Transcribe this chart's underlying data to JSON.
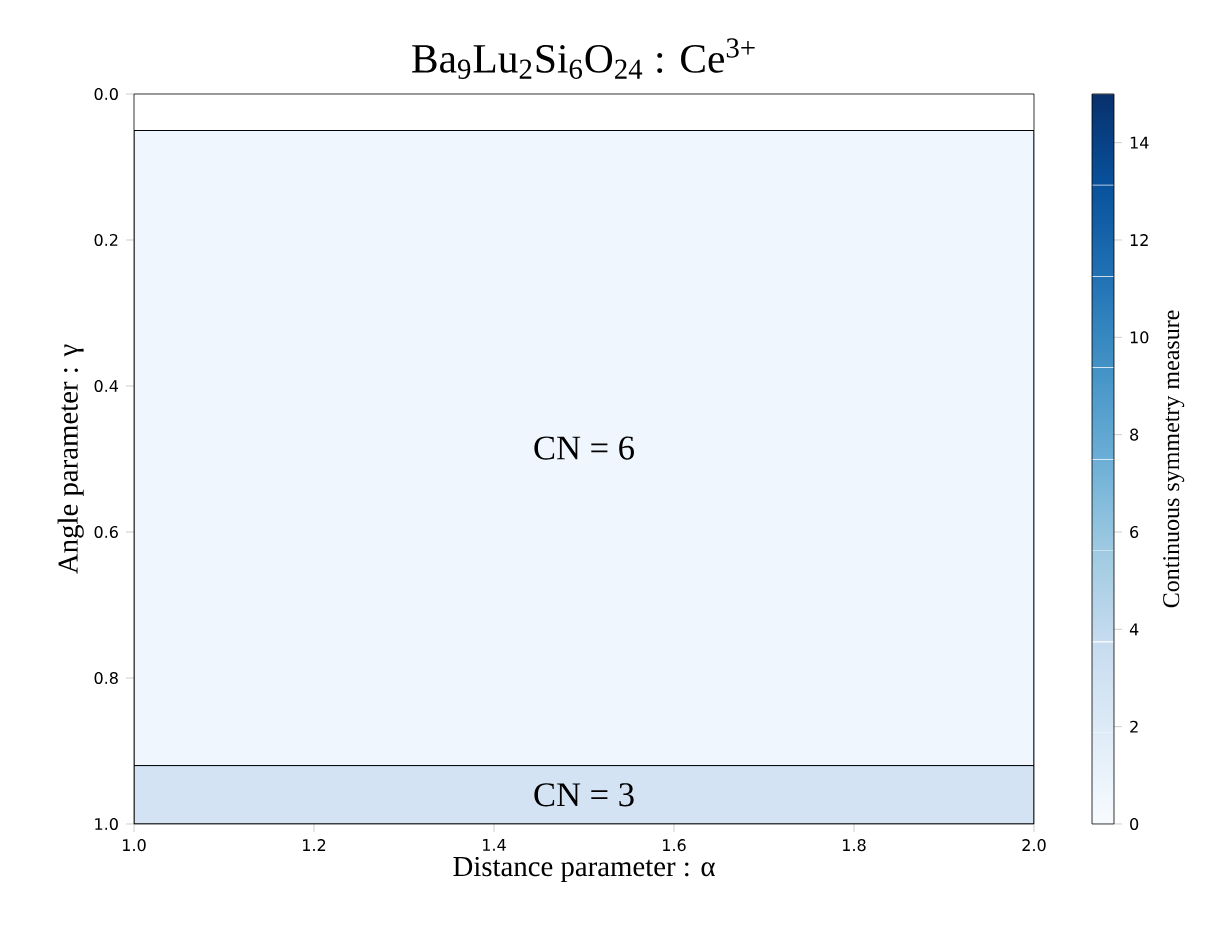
{
  "chart_data": {
    "type": "heatmap",
    "title": "Ba$_{9}$Lu$_{2}$Si$_{6}$O$_{24}$ : Ce$^{3+}$",
    "xlabel": "Distance parameter  :  α",
    "ylabel": "Angle parameter  :  γ",
    "clabel": "Continuous symmetry measure",
    "xlim": [
      1.0,
      2.0
    ],
    "ylim": [
      1.0,
      0.0
    ],
    "xticks": [
      {
        "value": 1.0,
        "label": "1.0"
      },
      {
        "value": 1.2,
        "label": "1.2"
      },
      {
        "value": 1.4,
        "label": "1.4"
      },
      {
        "value": 1.6,
        "label": "1.6"
      },
      {
        "value": 1.8,
        "label": "1.8"
      },
      {
        "value": 2.0,
        "label": "2.0"
      }
    ],
    "yticks": [
      {
        "value": 0.0,
        "label": "0.0"
      },
      {
        "value": 0.2,
        "label": "0.2"
      },
      {
        "value": 0.4,
        "label": "0.4"
      },
      {
        "value": 0.6,
        "label": "0.6"
      },
      {
        "value": 0.8,
        "label": "0.8"
      },
      {
        "value": 1.0,
        "label": "1.0"
      }
    ],
    "clim": [
      0,
      15
    ],
    "cticks": [
      0,
      2,
      4,
      6,
      8,
      10,
      12,
      14
    ],
    "bands": [
      {
        "axis": "y",
        "from": 0.05,
        "to": 0.92,
        "label": "CN = 6",
        "color": "#f0f6fd"
      },
      {
        "axis": "y",
        "from": 0.92,
        "to": 1.0,
        "label": "CN = 3",
        "color": "#d3e3f3"
      }
    ],
    "grid": false
  }
}
